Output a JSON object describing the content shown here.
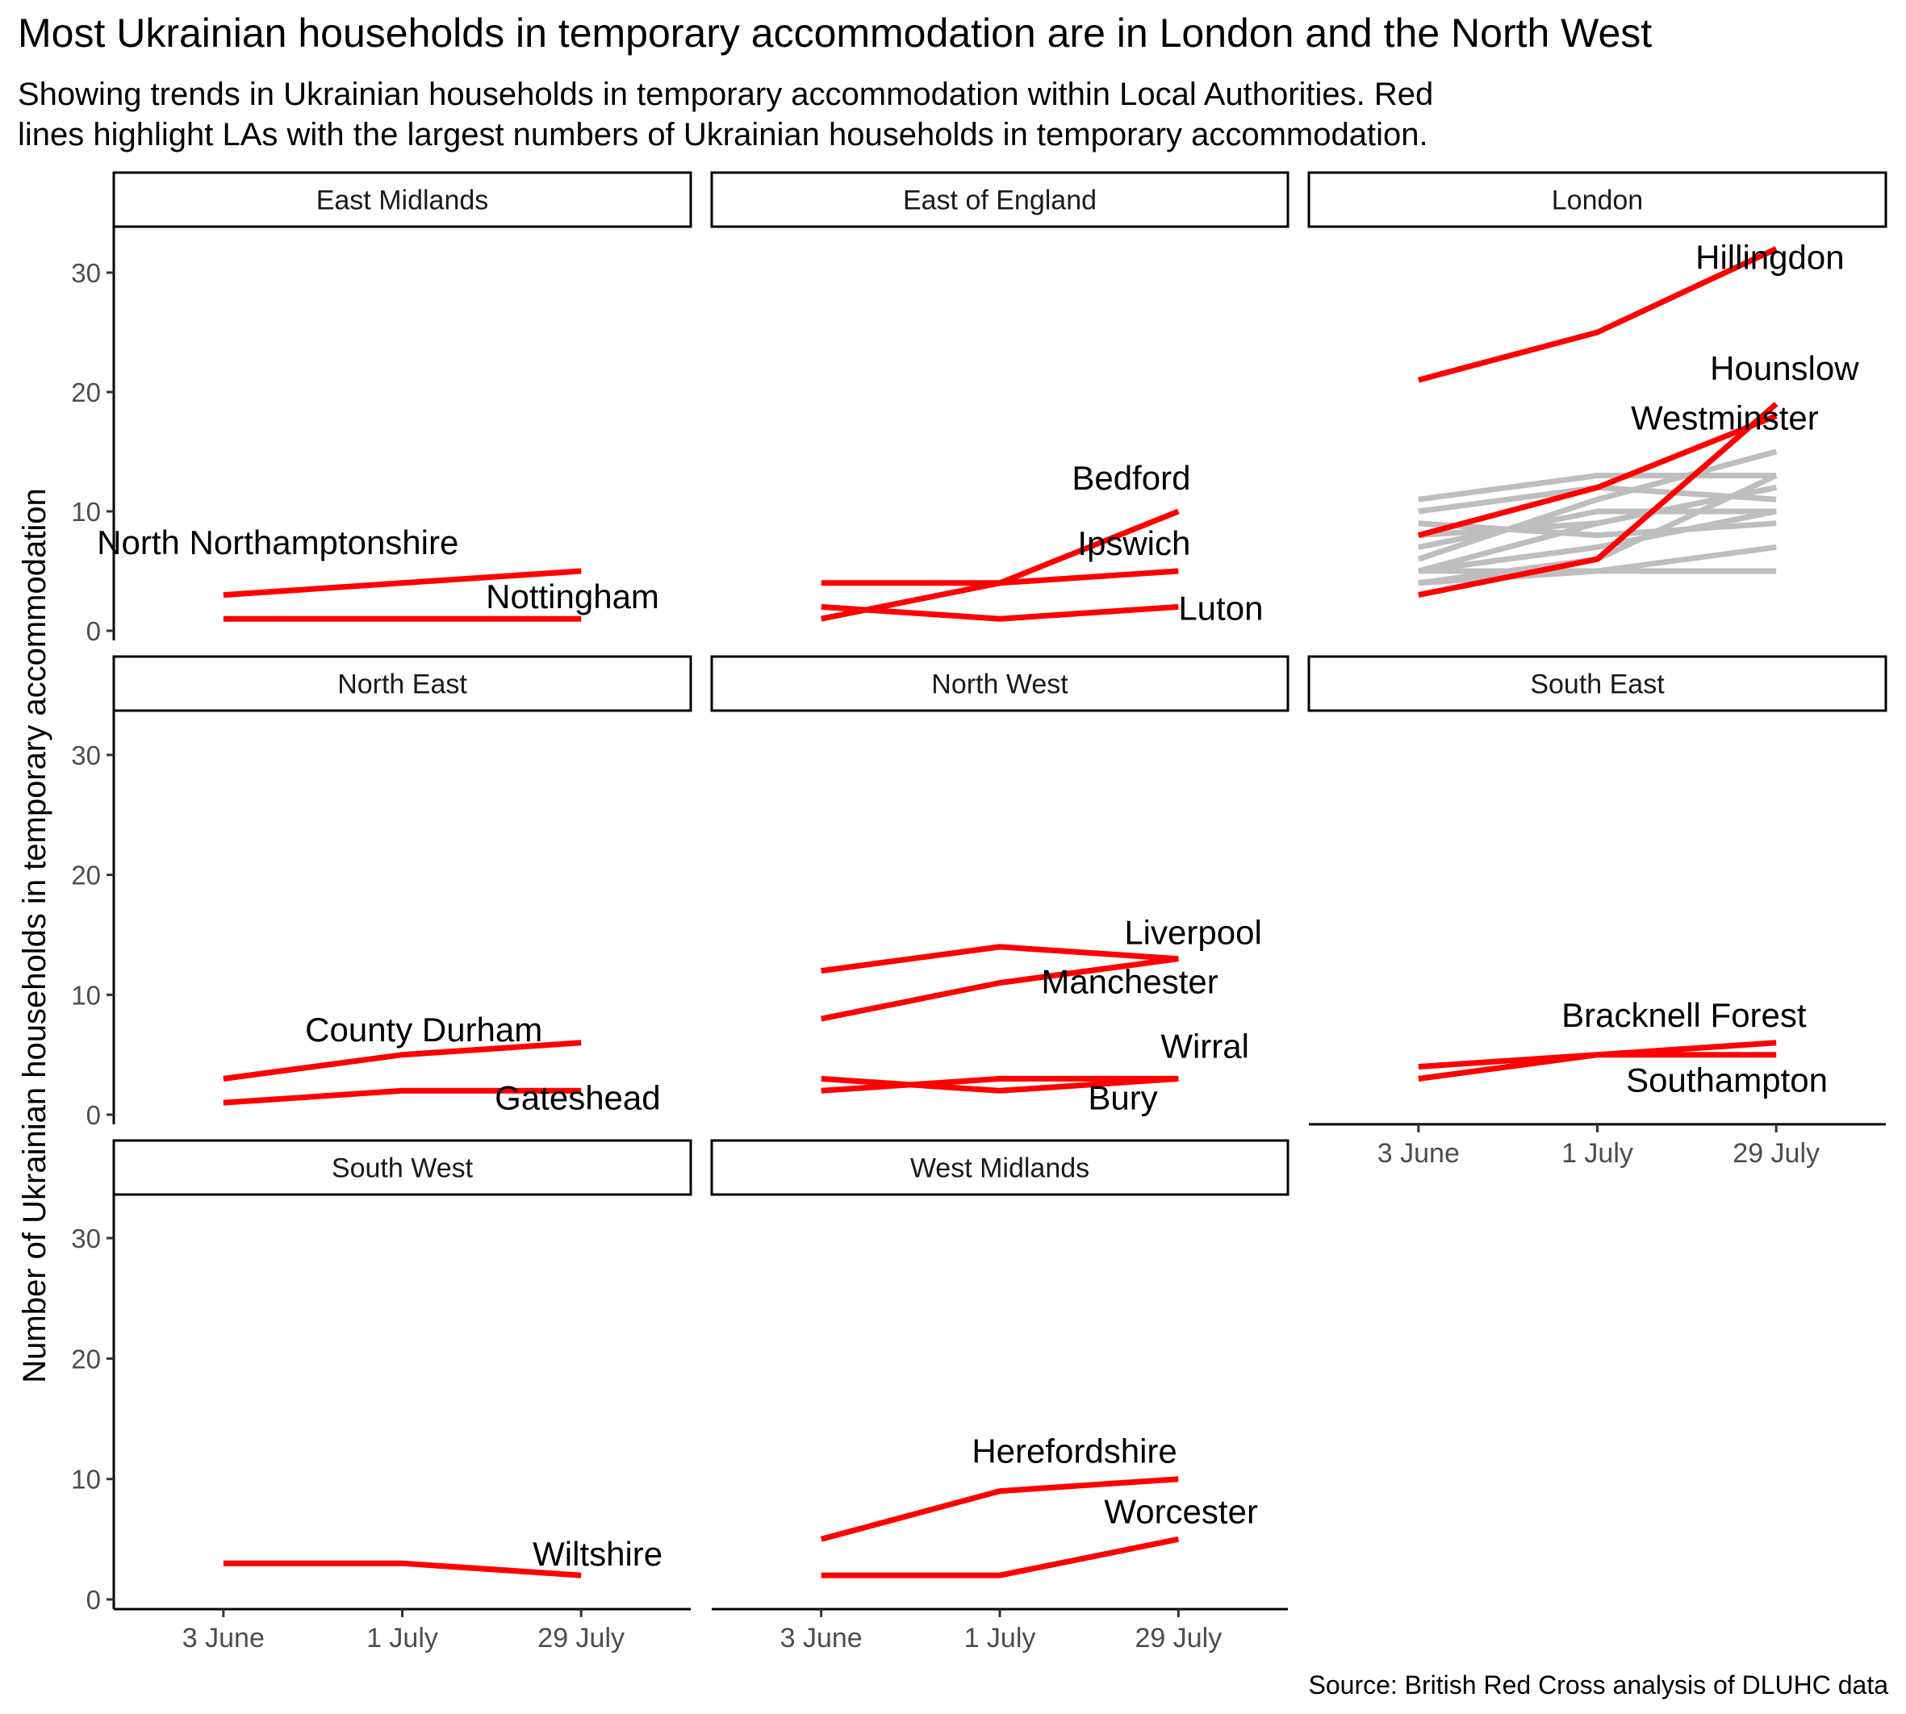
{
  "title": "Most Ukrainian households in temporary accommodation are in London and the North West",
  "subtitle_lines": [
    "Showing trends in Ukrainian households in temporary accommodation within Local Authorities. Red",
    "lines highlight LAs with the largest numbers of Ukrainian households in temporary accommodation."
  ],
  "caption": "Source: British Red Cross analysis of DLUHC data",
  "colors": {
    "highlight": "#ff0000",
    "other": "#bebebe"
  },
  "chart_data": {
    "type": "line",
    "layout": "facet-grid-3-columns",
    "ylabel": "Number of Ukrainian households in temporary accommodation",
    "x": [
      "3 June",
      "1 July",
      "29 July"
    ],
    "y_ticks": [
      0,
      10,
      20,
      30
    ],
    "ylim": [
      0,
      33
    ],
    "grid": false,
    "legend": "none",
    "panels": [
      {
        "name": "East Midlands",
        "series": [
          {
            "name": "North Northamptonshire",
            "values": [
              3,
              4,
              5
            ],
            "highlight": true
          },
          {
            "name": "Nottingham",
            "values": [
              1,
              1,
              1
            ],
            "highlight": true
          }
        ]
      },
      {
        "name": "East of England",
        "series": [
          {
            "name": "Bedford",
            "values": [
              1,
              4,
              10
            ],
            "highlight": true
          },
          {
            "name": "Ipswich",
            "values": [
              4,
              4,
              5
            ],
            "highlight": true
          },
          {
            "name": "Luton",
            "values": [
              2,
              1,
              2
            ],
            "highlight": true
          }
        ]
      },
      {
        "name": "London",
        "series": [
          {
            "values": [
              11,
              13,
              13
            ],
            "highlight": false
          },
          {
            "values": [
              10,
              12,
              11
            ],
            "highlight": false
          },
          {
            "values": [
              9,
              8,
              9
            ],
            "highlight": false
          },
          {
            "values": [
              8,
              9,
              12
            ],
            "highlight": false
          },
          {
            "values": [
              7,
              10,
              10
            ],
            "highlight": false
          },
          {
            "values": [
              6,
              11,
              15
            ],
            "highlight": false
          },
          {
            "values": [
              5,
              9,
              12
            ],
            "highlight": false
          },
          {
            "values": [
              5,
              7,
              10
            ],
            "highlight": false
          },
          {
            "values": [
              4,
              6,
              13
            ],
            "highlight": false
          },
          {
            "values": [
              4,
              5,
              7
            ],
            "highlight": false
          },
          {
            "values": [
              5,
              5,
              5
            ],
            "highlight": false
          },
          {
            "name": "Hillingdon",
            "values": [
              21,
              25,
              32
            ],
            "highlight": true
          },
          {
            "name": "Hounslow",
            "values": [
              3,
              6,
              19
            ],
            "highlight": true
          },
          {
            "name": "Westminster",
            "values": [
              8,
              12,
              18
            ],
            "highlight": true
          }
        ]
      },
      {
        "name": "North East",
        "series": [
          {
            "name": "County Durham",
            "values": [
              3,
              5,
              6
            ],
            "highlight": true
          },
          {
            "name": "Gateshead",
            "values": [
              1,
              2,
              2
            ],
            "highlight": true
          }
        ]
      },
      {
        "name": "North West",
        "series": [
          {
            "name": "Liverpool",
            "values": [
              12,
              14,
              13
            ],
            "highlight": true
          },
          {
            "name": "Manchester",
            "values": [
              8,
              11,
              13
            ],
            "highlight": true
          },
          {
            "name": "Wirral",
            "values": [
              2,
              3,
              3
            ],
            "highlight": true
          },
          {
            "name": "Bury",
            "values": [
              3,
              2,
              3
            ],
            "highlight": true
          }
        ]
      },
      {
        "name": "South East",
        "series": [
          {
            "name": "Bracknell Forest",
            "values": [
              3,
              5,
              6
            ],
            "highlight": true
          },
          {
            "name": "Southampton",
            "values": [
              4,
              5,
              5
            ],
            "highlight": true
          }
        ]
      },
      {
        "name": "South West",
        "series": [
          {
            "name": "Wiltshire",
            "values": [
              3,
              3,
              2
            ],
            "highlight": true
          }
        ]
      },
      {
        "name": "West Midlands",
        "series": [
          {
            "name": "Herefordshire",
            "values": [
              5,
              9,
              10
            ],
            "highlight": true
          },
          {
            "name": "Worcester",
            "values": [
              2,
              2,
              5
            ],
            "highlight": true
          }
        ]
      }
    ]
  }
}
